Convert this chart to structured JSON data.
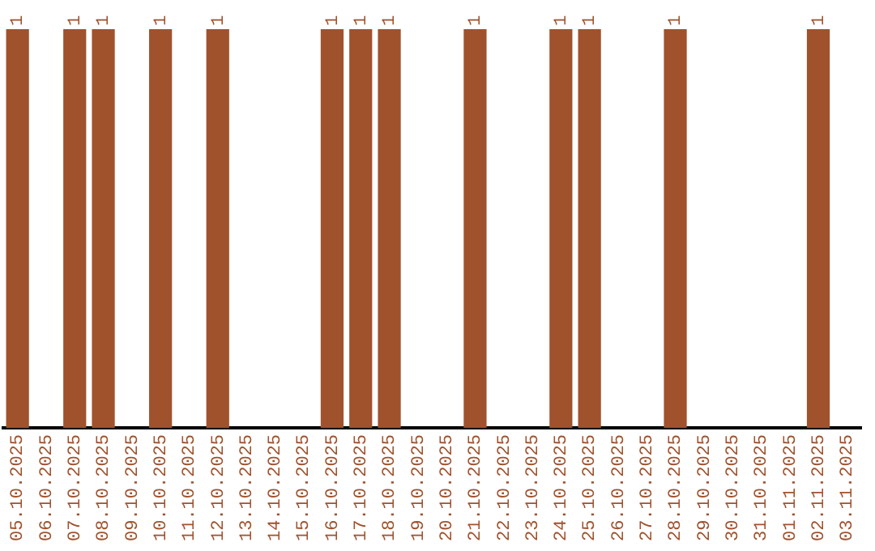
{
  "chart_data": {
    "type": "bar",
    "categories": [
      "05.10.2025",
      "06.10.2025",
      "07.10.2025",
      "08.10.2025",
      "09.10.2025",
      "10.10.2025",
      "11.10.2025",
      "12.10.2025",
      "13.10.2025",
      "14.10.2025",
      "15.10.2025",
      "16.10.2025",
      "17.10.2025",
      "18.10.2025",
      "19.10.2025",
      "20.10.2025",
      "21.10.2025",
      "22.10.2025",
      "23.10.2025",
      "24.10.2025",
      "25.10.2025",
      "26.10.2025",
      "27.10.2025",
      "28.10.2025",
      "29.10.2025",
      "30.10.2025",
      "31.10.2025",
      "01.11.2025",
      "02.11.2025",
      "03.11.2025"
    ],
    "values": [
      1,
      0,
      1,
      1,
      0,
      1,
      0,
      1,
      0,
      0,
      0,
      1,
      1,
      1,
      0,
      0,
      1,
      0,
      0,
      1,
      1,
      0,
      0,
      1,
      0,
      0,
      0,
      0,
      1,
      0
    ],
    "value_labels": [
      "1",
      null,
      "1",
      "1",
      null,
      "1",
      null,
      "1",
      null,
      null,
      null,
      "1",
      "1",
      "1",
      null,
      null,
      "1",
      null,
      null,
      "1",
      "1",
      null,
      null,
      "1",
      null,
      null,
      null,
      null,
      "1",
      null
    ],
    "color": "#a0522d",
    "ylim": [
      0,
      1
    ],
    "grid": false,
    "legend": false
  }
}
